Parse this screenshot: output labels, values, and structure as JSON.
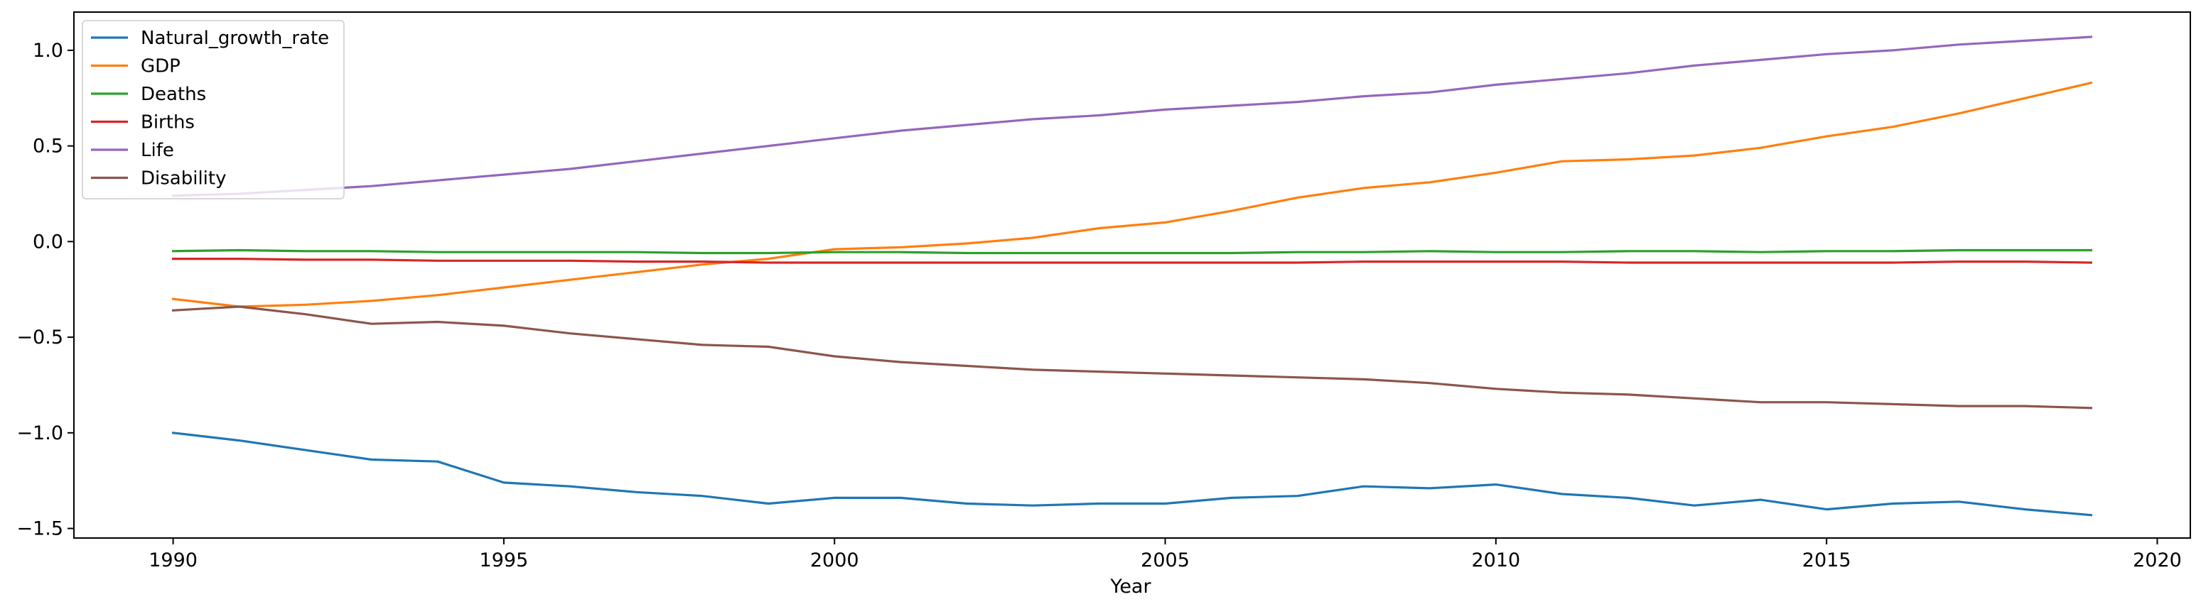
{
  "chart_data": {
    "type": "line",
    "xlabel": "Year",
    "ylabel": "",
    "xlim": [
      1988.5,
      2020.5
    ],
    "ylim": [
      -1.55,
      1.2
    ],
    "xticks": [
      1990,
      1995,
      2000,
      2005,
      2010,
      2015,
      2020
    ],
    "yticks": [
      -1.5,
      -1.0,
      -0.5,
      0.0,
      0.5,
      1.0
    ],
    "ytick_labels": [
      "−1.5",
      "−1.0",
      "−0.5",
      "0.0",
      "0.5",
      "1.0"
    ],
    "legend_position": "upper-left",
    "grid": false,
    "x": [
      1990,
      1991,
      1992,
      1993,
      1994,
      1995,
      1996,
      1997,
      1998,
      1999,
      2000,
      2001,
      2002,
      2003,
      2004,
      2005,
      2006,
      2007,
      2008,
      2009,
      2010,
      2011,
      2012,
      2013,
      2014,
      2015,
      2016,
      2017,
      2018,
      2019
    ],
    "series": [
      {
        "name": "Natural_growth_rate",
        "color": "#1f77b4",
        "values": [
          -1.0,
          -1.04,
          -1.09,
          -1.14,
          -1.15,
          -1.26,
          -1.28,
          -1.31,
          -1.33,
          -1.37,
          -1.34,
          -1.34,
          -1.37,
          -1.38,
          -1.37,
          -1.37,
          -1.34,
          -1.33,
          -1.28,
          -1.29,
          -1.27,
          -1.32,
          -1.34,
          -1.38,
          -1.35,
          -1.4,
          -1.37,
          -1.36,
          -1.4,
          -1.43
        ]
      },
      {
        "name": "GDP",
        "color": "#ff7f0e",
        "values": [
          -0.3,
          -0.34,
          -0.33,
          -0.31,
          -0.28,
          -0.24,
          -0.2,
          -0.16,
          -0.12,
          -0.09,
          -0.04,
          -0.03,
          -0.01,
          0.02,
          0.07,
          0.1,
          0.16,
          0.23,
          0.28,
          0.31,
          0.36,
          0.42,
          0.43,
          0.45,
          0.49,
          0.55,
          0.6,
          0.67,
          0.75,
          0.83
        ]
      },
      {
        "name": "Deaths",
        "color": "#2ca02c",
        "values": [
          -0.05,
          -0.045,
          -0.05,
          -0.05,
          -0.055,
          -0.055,
          -0.055,
          -0.055,
          -0.06,
          -0.06,
          -0.055,
          -0.055,
          -0.06,
          -0.06,
          -0.06,
          -0.06,
          -0.06,
          -0.055,
          -0.055,
          -0.05,
          -0.055,
          -0.055,
          -0.05,
          -0.05,
          -0.055,
          -0.05,
          -0.05,
          -0.045,
          -0.045,
          -0.045
        ]
      },
      {
        "name": "Births",
        "color": "#d62728",
        "values": [
          -0.09,
          -0.09,
          -0.095,
          -0.095,
          -0.1,
          -0.1,
          -0.1,
          -0.105,
          -0.105,
          -0.11,
          -0.11,
          -0.11,
          -0.11,
          -0.11,
          -0.11,
          -0.11,
          -0.11,
          -0.11,
          -0.105,
          -0.105,
          -0.105,
          -0.105,
          -0.11,
          -0.11,
          -0.11,
          -0.11,
          -0.11,
          -0.105,
          -0.105,
          -0.11
        ]
      },
      {
        "name": "Life",
        "color": "#9467bd",
        "values": [
          0.24,
          0.25,
          0.27,
          0.29,
          0.32,
          0.35,
          0.38,
          0.42,
          0.46,
          0.5,
          0.54,
          0.58,
          0.61,
          0.64,
          0.66,
          0.69,
          0.71,
          0.73,
          0.76,
          0.78,
          0.82,
          0.85,
          0.88,
          0.92,
          0.95,
          0.98,
          1.0,
          1.03,
          1.05,
          1.07
        ]
      },
      {
        "name": "Disability",
        "color": "#8c564b",
        "values": [
          -0.36,
          -0.34,
          -0.38,
          -0.43,
          -0.42,
          -0.44,
          -0.48,
          -0.51,
          -0.54,
          -0.55,
          -0.6,
          -0.63,
          -0.65,
          -0.67,
          -0.68,
          -0.69,
          -0.7,
          -0.71,
          -0.72,
          -0.74,
          -0.77,
          -0.79,
          -0.8,
          -0.82,
          -0.84,
          -0.84,
          -0.85,
          -0.86,
          -0.86,
          -0.87
        ]
      }
    ]
  }
}
